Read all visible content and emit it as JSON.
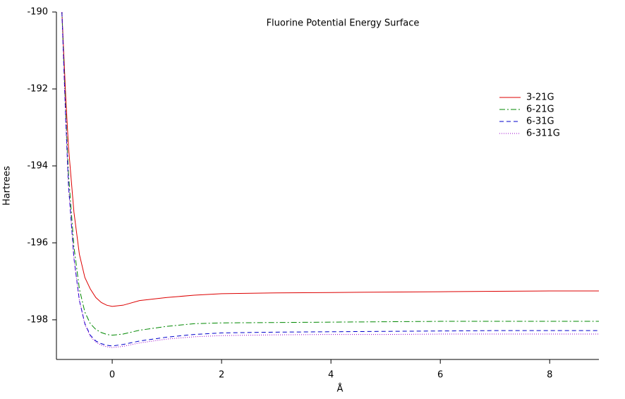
{
  "chart_data": {
    "type": "line",
    "title": "Fluorine Potential Energy Surface",
    "x_label": "Å",
    "y_label": "Hartrees",
    "x": [
      -0.92,
      -0.85,
      -0.8,
      -0.7,
      -0.6,
      -0.5,
      -0.4,
      -0.3,
      -0.2,
      -0.1,
      0,
      0.2,
      0.5,
      1,
      1.5,
      2,
      3,
      4,
      5,
      6,
      7,
      8,
      8.9
    ],
    "series": [
      {
        "name": "3-21G",
        "color": "#dd0000",
        "dash": "solid",
        "values": [
          -190,
          -192.2,
          -193.5,
          -195.2,
          -196.3,
          -196.9,
          -197.2,
          -197.42,
          -197.55,
          -197.62,
          -197.65,
          -197.62,
          -197.5,
          -197.42,
          -197.36,
          -197.32,
          -197.3,
          -197.29,
          -197.28,
          -197.27,
          -197.26,
          -197.25,
          -197.25
        ]
      },
      {
        "name": "6-21G",
        "color": "#008800",
        "dash": "dashdot",
        "values": [
          -190,
          -192.6,
          -194.2,
          -196.1,
          -197.2,
          -197.8,
          -198.1,
          -198.25,
          -198.33,
          -198.38,
          -198.4,
          -198.37,
          -198.27,
          -198.17,
          -198.1,
          -198.08,
          -198.07,
          -198.06,
          -198.05,
          -198.04,
          -198.04,
          -198.04,
          -198.04
        ]
      },
      {
        "name": "6-31G",
        "color": "#0000cc",
        "dash": "dashed",
        "values": [
          -190,
          -192.8,
          -194.5,
          -196.4,
          -197.5,
          -198.1,
          -198.4,
          -198.55,
          -198.62,
          -198.66,
          -198.68,
          -198.64,
          -198.55,
          -198.45,
          -198.38,
          -198.34,
          -198.32,
          -198.31,
          -198.3,
          -198.29,
          -198.28,
          -198.28,
          -198.28
        ]
      },
      {
        "name": "6-311G",
        "color": "#9900cc",
        "dash": "dotted",
        "values": [
          -190,
          -192.8,
          -194.5,
          -196.4,
          -197.5,
          -198.12,
          -198.43,
          -198.58,
          -198.66,
          -198.7,
          -198.72,
          -198.69,
          -198.6,
          -198.5,
          -198.44,
          -198.41,
          -198.39,
          -198.38,
          -198.38,
          -198.37,
          -198.37,
          -198.37,
          -198.37
        ]
      }
    ],
    "xlim": [
      -1.02,
      8.9
    ],
    "ylim": [
      -199.03,
      -190
    ],
    "xticks": [
      0,
      2,
      4,
      6,
      8
    ],
    "yticks": [
      -190,
      -192,
      -194,
      -196,
      -198
    ],
    "legend": "top-right"
  }
}
